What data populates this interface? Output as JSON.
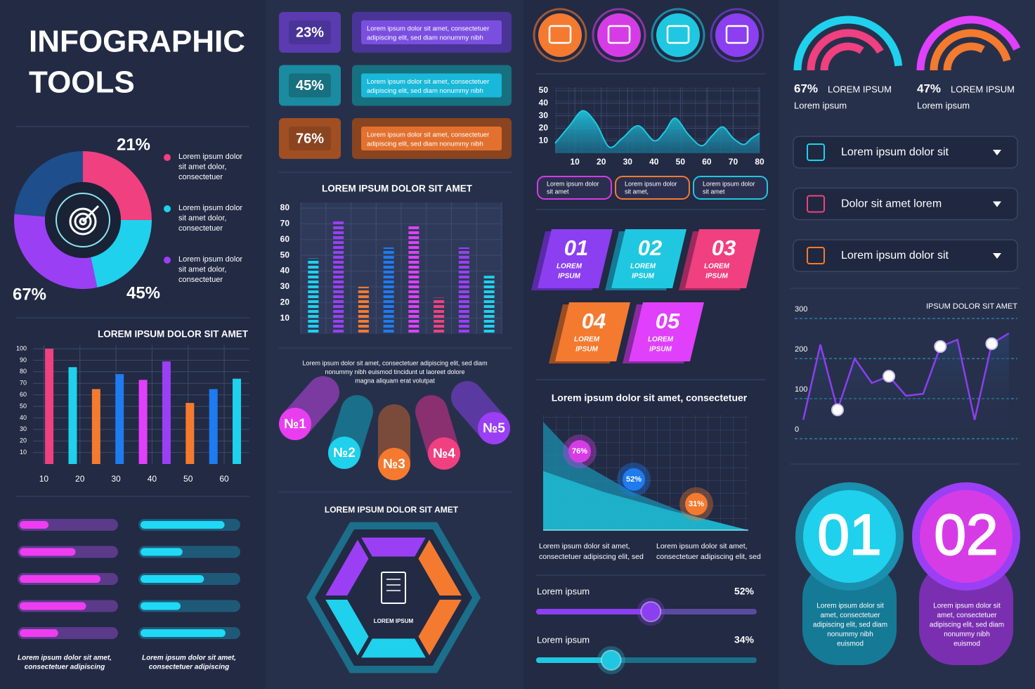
{
  "title": [
    "INFOGRAPHIC",
    "TOOLS"
  ],
  "donut": {
    "labels": [
      "21%",
      "45%",
      "67%"
    ],
    "legend": [
      [
        "Lorem ipsum dolor",
        "sit amet dolor,",
        "consectetuer"
      ],
      [
        "Lorem ipsum dolor",
        "sit amet dolor,",
        "consectetuer"
      ],
      [
        "Lorem ipsum dolor",
        "sit amet dolor,",
        "consectetuer"
      ]
    ]
  },
  "progress": {
    "left": [
      30,
      58,
      84,
      69,
      40
    ],
    "right": [
      86,
      43,
      65,
      41,
      87
    ],
    "captions": [
      [
        "Lorem ipsum dolor sit amet,",
        "consectetuer adipiscing"
      ],
      [
        "Lorem ipsum dolor sit amet,",
        "consectetuer adipiscing"
      ]
    ]
  },
  "stat_rows": [
    {
      "value": "23%",
      "text": [
        "Lorem ipsum dolor sit amet, consectetuer",
        "adipiscing elit, sed diam nonummy nibh"
      ]
    },
    {
      "value": "45%",
      "text": [
        "Lorem ipsum dolor sit amet, consectetuer",
        "adipiscing elit, sed diam nonummy nibh"
      ]
    },
    {
      "value": "76%",
      "text": [
        "Lorem ipsum dolor sit amet, consectetuer",
        "adipiscing elit, sed diam nonummy nibh"
      ]
    }
  ],
  "paragraph": [
    "Lorem ipsum dolor sit amet, consectetuer adipiscing elit, sed diam",
    "nonummy nibh euismod tincidunt ut laoreet dolore",
    "magna aliquam erat volutpat"
  ],
  "pills": [
    "№1",
    "№2",
    "№3",
    "№4",
    "№5"
  ],
  "hexagon": {
    "title": "LOREM IPSUM DOLOR SIT AMET",
    "label": "LOREM IPSUM"
  },
  "tags": [
    [
      "Lorem ipsum dolor",
      "sit amet"
    ],
    [
      "Lorem ipsum dolor",
      "sit amet,"
    ],
    [
      "Lorem ipsum dolor",
      "sit amet"
    ]
  ],
  "tiles": [
    {
      "number": "01",
      "label": [
        "LOREM",
        "IPSUM"
      ]
    },
    {
      "number": "02",
      "label": [
        "LOREM",
        "IPSUM"
      ]
    },
    {
      "number": "03",
      "label": [
        "LOREM",
        "IPSUM"
      ]
    },
    {
      "number": "04",
      "label": [
        "LOREM",
        "IPSUM"
      ]
    },
    {
      "number": "05",
      "label": [
        "LOREM",
        "IPSUM"
      ]
    }
  ],
  "bubble_panel": {
    "title": "Lorem ipsum dolor sit amet, consectetuer",
    "bubbles": [
      "76%",
      "52%",
      "31%"
    ],
    "captions": [
      [
        "Lorem ipsum dolor sit amet,",
        "consectetuer adipiscing elit, sed"
      ],
      [
        "Lorem ipsum dolor sit amet,",
        "consectetuer adipiscing elit, sed"
      ]
    ]
  },
  "sliders": [
    {
      "label": "Lorem ipsum",
      "value": 52,
      "value_label": "52%"
    },
    {
      "label": "Lorem ipsum",
      "value": 34,
      "value_label": "34%"
    }
  ],
  "gauges": [
    {
      "value": "67%",
      "label": "LOREM IPSUM",
      "sub": "Lorem ipsum"
    },
    {
      "value": "47%",
      "label": "LOREM IPSUM",
      "sub": "Lorem ipsum"
    }
  ],
  "dropdowns": [
    "Lorem ipsum dolor sit",
    "Dolor sit amet lorem",
    "Lorem ipsum dolor sit"
  ],
  "big_numbers": [
    {
      "number": "01",
      "text": [
        "Lorem ipsum dolor sit",
        "amet, consectetuer",
        "adipiscing elit, sed diam",
        "nonummy nibh",
        "euismod"
      ]
    },
    {
      "number": "02",
      "text": [
        "Lorem ipsum dolor sit",
        "amet, consectetuer",
        "adipiscing elit, sed diam",
        "nonummy nibh",
        "euismod"
      ]
    }
  ],
  "chart_data": [
    {
      "type": "bar",
      "title": "LOREM IPSUM DOLOR SIT AMET",
      "x": [
        11.5,
        18,
        24.5,
        31,
        37.5,
        44,
        50.5,
        57,
        63.5
      ],
      "values": [
        100,
        84,
        65,
        78,
        73,
        89,
        53,
        65,
        74
      ],
      "colors": [
        "#f0407f",
        "#1fd1ec",
        "#f47a30",
        "#1e7bf0",
        "#e040fb",
        "#9b3ff5",
        "#f47a30",
        "#1e7bf0",
        "#1fd1ec"
      ],
      "xlim": [
        7,
        67
      ],
      "xticks": [
        10,
        20,
        30,
        40,
        50,
        60
      ],
      "ylim": [
        0,
        100
      ],
      "yticks": [
        10,
        20,
        30,
        40,
        50,
        60,
        70,
        80,
        90,
        100
      ],
      "grid": true
    },
    {
      "type": "bar",
      "title": "LOREM IPSUM DOLOR SIT AMET",
      "categories": [
        null,
        null,
        null,
        null,
        null,
        null,
        null,
        null
      ],
      "values": [
        48,
        72,
        30,
        55,
        69,
        23,
        55,
        37
      ],
      "colors": [
        "#1fd1ec",
        "#9b3ff5",
        "#f47a30",
        "#1e7bf0",
        "#e040fb",
        "#f0407f",
        "#9b3ff5",
        "#1fd1ec"
      ],
      "striped": true,
      "ylim": [
        0,
        80
      ],
      "yticks": [
        10,
        20,
        30,
        40,
        50,
        60,
        70,
        80
      ],
      "grid": true
    },
    {
      "type": "area",
      "x": [
        2.5,
        8,
        13,
        18,
        23,
        28,
        34,
        40,
        44,
        48,
        53,
        58,
        62,
        66,
        70,
        74,
        77,
        80
      ],
      "values": [
        8,
        22,
        34,
        24,
        5,
        12,
        22,
        10,
        17,
        28,
        15,
        6,
        14,
        21,
        12,
        7,
        12,
        16
      ],
      "color": "#1fc8e0",
      "xlim": [
        2.5,
        80
      ],
      "xticks": [
        10,
        20,
        30,
        40,
        50,
        60,
        70,
        80
      ],
      "ylim": [
        0,
        50
      ],
      "yticks": [
        10,
        20,
        30,
        40,
        50
      ],
      "grid": true
    },
    {
      "type": "line",
      "title": "IPSUM DOLOR  SIT AMET",
      "categories": [
        null,
        null,
        null,
        null,
        null,
        null,
        null,
        null,
        null,
        null,
        null,
        null,
        null
      ],
      "values": [
        47,
        235,
        72,
        200,
        139,
        156,
        107,
        112,
        230,
        247,
        47,
        237,
        263
      ],
      "markers": [
        2,
        5,
        8,
        11
      ],
      "color": "#8b3ff0",
      "ylim": [
        0,
        300
      ],
      "yticks": [
        0,
        100,
        200,
        300
      ],
      "grid": true
    }
  ]
}
